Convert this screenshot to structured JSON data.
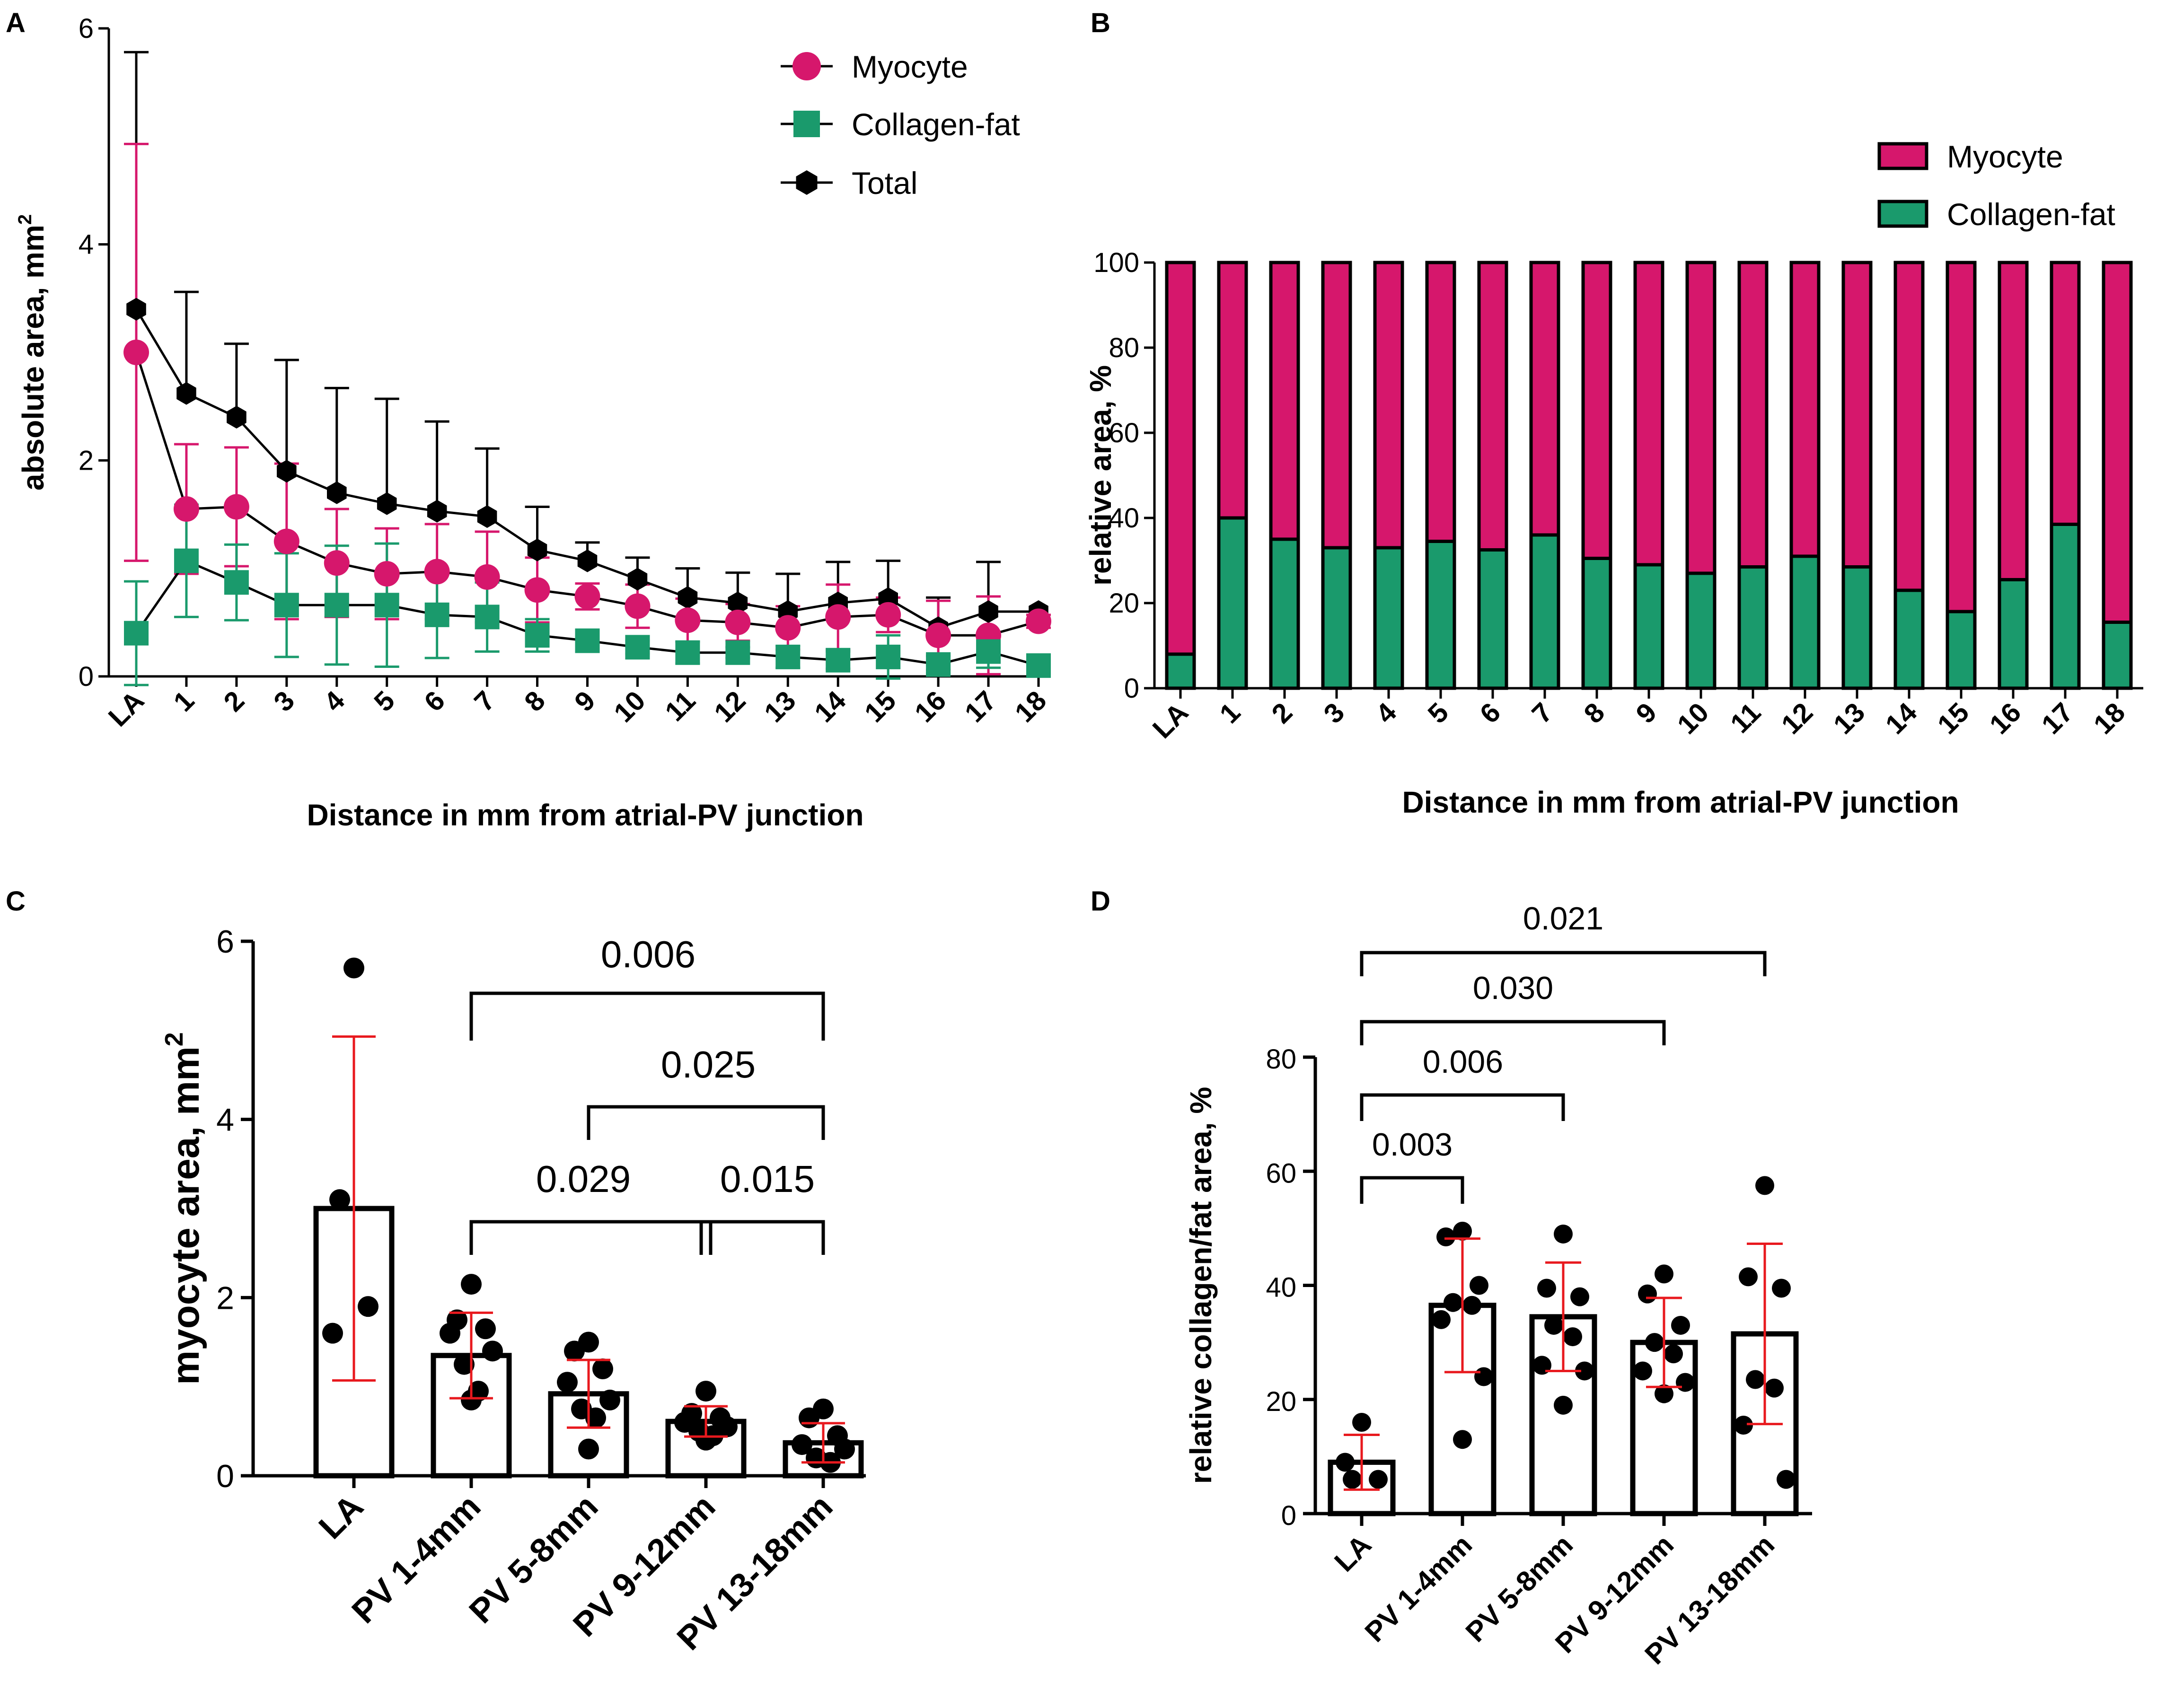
{
  "colors": {
    "myocyte": "#d6176c",
    "collagen": "#1a9a6c",
    "total": "#000000",
    "errorbar_cd": "#e8191e"
  },
  "chart_data": [
    {
      "panel": "A",
      "type": "line",
      "categories": [
        "LA",
        "1",
        "2",
        "3",
        "4",
        "5",
        "6",
        "7",
        "8",
        "9",
        "10",
        "11",
        "12",
        "13",
        "14",
        "15",
        "16",
        "17",
        "18"
      ],
      "series": [
        {
          "name": "Myocyte",
          "color": "#d6176c",
          "marker": "circle",
          "values": [
            3.0,
            1.55,
            1.57,
            1.25,
            1.05,
            0.95,
            0.97,
            0.92,
            0.8,
            0.74,
            0.65,
            0.52,
            0.5,
            0.45,
            0.55,
            0.57,
            0.38,
            0.38,
            0.51
          ],
          "sd": [
            1.93,
            0.6,
            0.55,
            0.72,
            0.5,
            0.42,
            0.44,
            0.42,
            0.3,
            0.12,
            0.2,
            0.2,
            0.17,
            0.2,
            0.3,
            0.16,
            0.32,
            0.36,
            0.06
          ]
        },
        {
          "name": "Collagen-fat",
          "color": "#1a9a6c",
          "marker": "square",
          "values": [
            0.4,
            1.07,
            0.87,
            0.66,
            0.66,
            0.66,
            0.57,
            0.55,
            0.38,
            0.33,
            0.27,
            0.22,
            0.22,
            0.18,
            0.15,
            0.18,
            0.11,
            0.23,
            0.1
          ],
          "sd": [
            0.48,
            0.52,
            0.35,
            0.48,
            0.55,
            0.57,
            0.4,
            0.32,
            0.15,
            0.05,
            0.06,
            0.1,
            0.05,
            0.1,
            0.08,
            0.2,
            0.08,
            0.15,
            0.02
          ]
        },
        {
          "name": "Total",
          "color": "#000000",
          "marker": "hexagon",
          "values": [
            3.4,
            2.62,
            2.4,
            1.9,
            1.7,
            1.6,
            1.53,
            1.48,
            1.17,
            1.07,
            0.9,
            0.73,
            0.68,
            0.6,
            0.68,
            0.72,
            0.45,
            0.6,
            0.6
          ],
          "sd": [
            2.38,
            0.94,
            0.68,
            1.03,
            0.97,
            0.97,
            0.83,
            0.63,
            0.4,
            0.17,
            0.2,
            0.27,
            0.28,
            0.35,
            0.38,
            0.35,
            0.28,
            0.46,
            0.0
          ]
        }
      ],
      "ylabel": "absolute area, mm",
      "ylabel_sup": "2",
      "xlabel": "Distance in mm from atrial-PV junction",
      "ylim": [
        0,
        6
      ],
      "yticks": [
        "0",
        "2",
        "4",
        "6"
      ],
      "legend_position": "top-right"
    },
    {
      "panel": "B",
      "type": "bar",
      "stacked": true,
      "categories": [
        "LA",
        "1",
        "2",
        "3",
        "4",
        "5",
        "6",
        "7",
        "8",
        "9",
        "10",
        "11",
        "12",
        "13",
        "14",
        "15",
        "16",
        "17",
        "18"
      ],
      "series": [
        {
          "name": "Collagen-fat",
          "color": "#1a9a6c",
          "values": [
            8,
            40,
            35,
            33,
            33,
            34.5,
            32.5,
            36,
            30.5,
            29,
            27,
            28.5,
            31,
            28.5,
            23,
            18,
            25.5,
            38.5,
            15.5
          ]
        },
        {
          "name": "Myocyte",
          "color": "#d6176c",
          "values": [
            92,
            60,
            65,
            67,
            67,
            65.5,
            67.5,
            64,
            69.5,
            71,
            73,
            71.5,
            69,
            71.5,
            77,
            82,
            74.5,
            61.5,
            84.5
          ]
        }
      ],
      "legend": [
        "Myocyte",
        "Collagen-fat"
      ],
      "ylabel": "relative area, %",
      "xlabel": "Distance in mm from atrial-PV junction",
      "ylim": [
        0,
        100
      ],
      "yticks": [
        "0",
        "20",
        "40",
        "60",
        "80",
        "100"
      ],
      "legend_position": "top-right"
    },
    {
      "panel": "C",
      "type": "bar",
      "categories": [
        "LA",
        "PV 1-4mm",
        "PV 5-8mm",
        "PV 9-12mm",
        "PV 13-18mm"
      ],
      "values": [
        3.0,
        1.35,
        0.92,
        0.61,
        0.37
      ],
      "sd": [
        1.93,
        0.48,
        0.38,
        0.17,
        0.22
      ],
      "points": [
        [
          5.7,
          3.1,
          1.9,
          1.6
        ],
        [
          2.15,
          1.75,
          1.65,
          1.6,
          1.4,
          1.25,
          0.95,
          0.85
        ],
        [
          1.5,
          1.4,
          1.2,
          1.05,
          0.85,
          0.75,
          0.65,
          0.3
        ],
        [
          0.95,
          0.7,
          0.65,
          0.6,
          0.55,
          0.5,
          0.45,
          0.4
        ],
        [
          0.75,
          0.65,
          0.45,
          0.35,
          0.3,
          0.2,
          0.15
        ]
      ],
      "ylabel": "myocyte area, mm",
      "ylabel_sup": "2",
      "ylim": [
        0,
        6
      ],
      "yticks": [
        "0",
        "2",
        "4",
        "6"
      ],
      "comparisons": [
        {
          "from": 1,
          "to": 4,
          "label": "0.006"
        },
        {
          "from": 2,
          "to": 4,
          "label": "0.025"
        },
        {
          "from": 1,
          "to": 3,
          "label": "0.029"
        },
        {
          "from": 3,
          "to": 4,
          "label": "0.015"
        }
      ]
    },
    {
      "panel": "D",
      "type": "bar",
      "categories": [
        "LA",
        "PV 1-4mm",
        "PV 5-8mm",
        "PV 9-12mm",
        "PV 13-18mm"
      ],
      "values": [
        9,
        36.5,
        34.5,
        30,
        31.5
      ],
      "sd": [
        4.8,
        11.7,
        9.5,
        7.8,
        15.8
      ],
      "points": [
        [
          16,
          9,
          6,
          6
        ],
        [
          49.5,
          48.5,
          40,
          37,
          36.5,
          34,
          24,
          13
        ],
        [
          49,
          39.5,
          38,
          33,
          31,
          26,
          25,
          19
        ],
        [
          42,
          38.5,
          33,
          30,
          28,
          25,
          23,
          21
        ],
        [
          57.5,
          41.5,
          39.5,
          23.5,
          22,
          15.5,
          6
        ]
      ],
      "ylabel": "relative collagen/fat area, %",
      "ylim": [
        0,
        80
      ],
      "yticks": [
        "0",
        "20",
        "40",
        "60",
        "80"
      ],
      "comparisons": [
        {
          "from": 0,
          "to": 4,
          "label": "0.021"
        },
        {
          "from": 0,
          "to": 3,
          "label": "0.030"
        },
        {
          "from": 0,
          "to": 2,
          "label": "0.006"
        },
        {
          "from": 0,
          "to": 1,
          "label": "0.003"
        }
      ]
    }
  ]
}
